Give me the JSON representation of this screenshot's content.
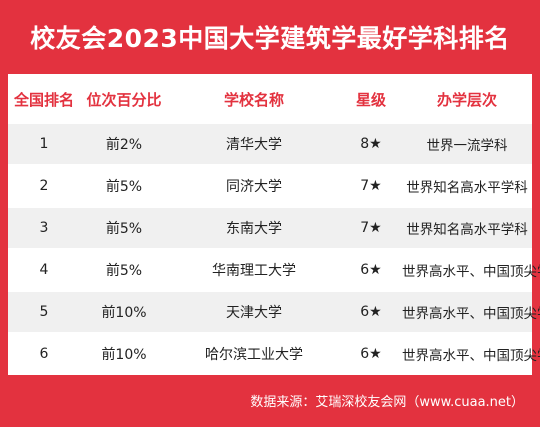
{
  "title": "校友会2023中国大学建筑学最好学科排名",
  "headers": [
    "全国排名",
    "位次百分比",
    "学校名称",
    "星级",
    "办学层次"
  ],
  "rows": [
    {
      "rank": "1",
      "percent": "前2%",
      "school": "清华大学",
      "stars": "8★",
      "tier": "世界一流学科"
    },
    {
      "rank": "2",
      "percent": "前5%",
      "school": "同济大学",
      "stars": "7★",
      "tier": "世界知名高水平学科"
    },
    {
      "rank": "3",
      "percent": "前5%",
      "school": "东南大学",
      "stars": "7★",
      "tier": "世界知名高水平学科"
    },
    {
      "rank": "4",
      "percent": "前5%",
      "school": "华南理工大学",
      "stars": "6★",
      "tier": "世界高水平、中国顶尖学科"
    },
    {
      "rank": "5",
      "percent": "前10%",
      "school": "天津大学",
      "stars": "6★",
      "tier": "世界高水平、中国顶尖学科"
    },
    {
      "rank": "6",
      "percent": "前10%",
      "school": "哈尔滨工业大学",
      "stars": "6★",
      "tier": "世界高水平、中国顶尖学科"
    }
  ],
  "source": "数据来源：艾瑞深校友会网（www.cuaa.net）",
  "colors": {
    "accent": "#e3323f",
    "row_alt": "#f0f0f0"
  }
}
